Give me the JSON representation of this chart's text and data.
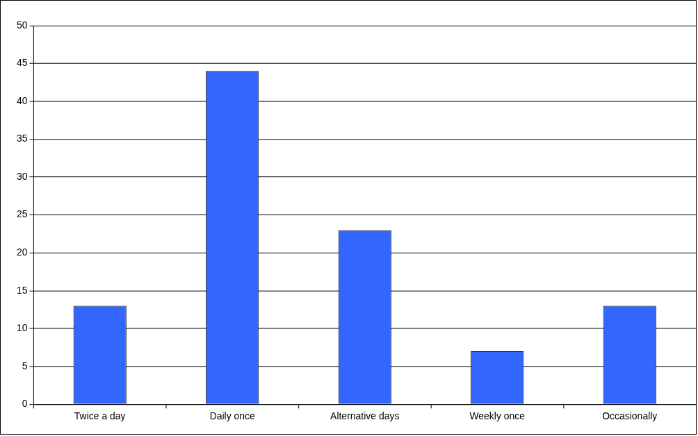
{
  "chart_data": {
    "type": "bar",
    "categories": [
      "Twice a day",
      "Daily once",
      "Alternative days",
      "Weekly once",
      "Occasionally"
    ],
    "values": [
      13,
      44,
      23,
      7,
      13
    ],
    "color": "#3366ff",
    "ylim": [
      0,
      50
    ],
    "yticks": [
      0,
      5,
      10,
      15,
      20,
      25,
      30,
      35,
      40,
      45,
      50
    ],
    "grid": "y",
    "legend": false
  }
}
